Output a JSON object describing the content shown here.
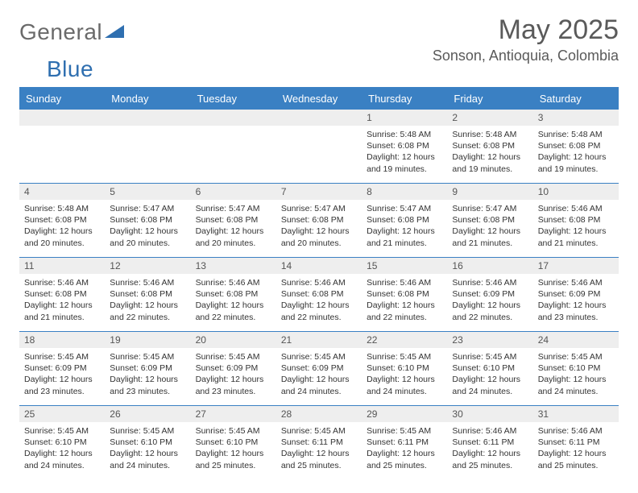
{
  "brand": {
    "part1": "General",
    "part2": "Blue"
  },
  "header": {
    "month": "May 2025",
    "location": "Sonson, Antioquia, Colombia"
  },
  "colors": {
    "accent": "#3a80c3",
    "row_band": "#eeeeee",
    "text": "#333333",
    "muted": "#5a5a5a",
    "bg": "#ffffff"
  },
  "weekdays": [
    "Sunday",
    "Monday",
    "Tuesday",
    "Wednesday",
    "Thursday",
    "Friday",
    "Saturday"
  ],
  "weeks": [
    [
      {
        "n": "",
        "sr": "",
        "ss": "",
        "dl": ""
      },
      {
        "n": "",
        "sr": "",
        "ss": "",
        "dl": ""
      },
      {
        "n": "",
        "sr": "",
        "ss": "",
        "dl": ""
      },
      {
        "n": "",
        "sr": "",
        "ss": "",
        "dl": ""
      },
      {
        "n": "1",
        "sr": "Sunrise: 5:48 AM",
        "ss": "Sunset: 6:08 PM",
        "dl": "Daylight: 12 hours and 19 minutes."
      },
      {
        "n": "2",
        "sr": "Sunrise: 5:48 AM",
        "ss": "Sunset: 6:08 PM",
        "dl": "Daylight: 12 hours and 19 minutes."
      },
      {
        "n": "3",
        "sr": "Sunrise: 5:48 AM",
        "ss": "Sunset: 6:08 PM",
        "dl": "Daylight: 12 hours and 19 minutes."
      }
    ],
    [
      {
        "n": "4",
        "sr": "Sunrise: 5:48 AM",
        "ss": "Sunset: 6:08 PM",
        "dl": "Daylight: 12 hours and 20 minutes."
      },
      {
        "n": "5",
        "sr": "Sunrise: 5:47 AM",
        "ss": "Sunset: 6:08 PM",
        "dl": "Daylight: 12 hours and 20 minutes."
      },
      {
        "n": "6",
        "sr": "Sunrise: 5:47 AM",
        "ss": "Sunset: 6:08 PM",
        "dl": "Daylight: 12 hours and 20 minutes."
      },
      {
        "n": "7",
        "sr": "Sunrise: 5:47 AM",
        "ss": "Sunset: 6:08 PM",
        "dl": "Daylight: 12 hours and 20 minutes."
      },
      {
        "n": "8",
        "sr": "Sunrise: 5:47 AM",
        "ss": "Sunset: 6:08 PM",
        "dl": "Daylight: 12 hours and 21 minutes."
      },
      {
        "n": "9",
        "sr": "Sunrise: 5:47 AM",
        "ss": "Sunset: 6:08 PM",
        "dl": "Daylight: 12 hours and 21 minutes."
      },
      {
        "n": "10",
        "sr": "Sunrise: 5:46 AM",
        "ss": "Sunset: 6:08 PM",
        "dl": "Daylight: 12 hours and 21 minutes."
      }
    ],
    [
      {
        "n": "11",
        "sr": "Sunrise: 5:46 AM",
        "ss": "Sunset: 6:08 PM",
        "dl": "Daylight: 12 hours and 21 minutes."
      },
      {
        "n": "12",
        "sr": "Sunrise: 5:46 AM",
        "ss": "Sunset: 6:08 PM",
        "dl": "Daylight: 12 hours and 22 minutes."
      },
      {
        "n": "13",
        "sr": "Sunrise: 5:46 AM",
        "ss": "Sunset: 6:08 PM",
        "dl": "Daylight: 12 hours and 22 minutes."
      },
      {
        "n": "14",
        "sr": "Sunrise: 5:46 AM",
        "ss": "Sunset: 6:08 PM",
        "dl": "Daylight: 12 hours and 22 minutes."
      },
      {
        "n": "15",
        "sr": "Sunrise: 5:46 AM",
        "ss": "Sunset: 6:08 PM",
        "dl": "Daylight: 12 hours and 22 minutes."
      },
      {
        "n": "16",
        "sr": "Sunrise: 5:46 AM",
        "ss": "Sunset: 6:09 PM",
        "dl": "Daylight: 12 hours and 22 minutes."
      },
      {
        "n": "17",
        "sr": "Sunrise: 5:46 AM",
        "ss": "Sunset: 6:09 PM",
        "dl": "Daylight: 12 hours and 23 minutes."
      }
    ],
    [
      {
        "n": "18",
        "sr": "Sunrise: 5:45 AM",
        "ss": "Sunset: 6:09 PM",
        "dl": "Daylight: 12 hours and 23 minutes."
      },
      {
        "n": "19",
        "sr": "Sunrise: 5:45 AM",
        "ss": "Sunset: 6:09 PM",
        "dl": "Daylight: 12 hours and 23 minutes."
      },
      {
        "n": "20",
        "sr": "Sunrise: 5:45 AM",
        "ss": "Sunset: 6:09 PM",
        "dl": "Daylight: 12 hours and 23 minutes."
      },
      {
        "n": "21",
        "sr": "Sunrise: 5:45 AM",
        "ss": "Sunset: 6:09 PM",
        "dl": "Daylight: 12 hours and 24 minutes."
      },
      {
        "n": "22",
        "sr": "Sunrise: 5:45 AM",
        "ss": "Sunset: 6:10 PM",
        "dl": "Daylight: 12 hours and 24 minutes."
      },
      {
        "n": "23",
        "sr": "Sunrise: 5:45 AM",
        "ss": "Sunset: 6:10 PM",
        "dl": "Daylight: 12 hours and 24 minutes."
      },
      {
        "n": "24",
        "sr": "Sunrise: 5:45 AM",
        "ss": "Sunset: 6:10 PM",
        "dl": "Daylight: 12 hours and 24 minutes."
      }
    ],
    [
      {
        "n": "25",
        "sr": "Sunrise: 5:45 AM",
        "ss": "Sunset: 6:10 PM",
        "dl": "Daylight: 12 hours and 24 minutes."
      },
      {
        "n": "26",
        "sr": "Sunrise: 5:45 AM",
        "ss": "Sunset: 6:10 PM",
        "dl": "Daylight: 12 hours and 24 minutes."
      },
      {
        "n": "27",
        "sr": "Sunrise: 5:45 AM",
        "ss": "Sunset: 6:10 PM",
        "dl": "Daylight: 12 hours and 25 minutes."
      },
      {
        "n": "28",
        "sr": "Sunrise: 5:45 AM",
        "ss": "Sunset: 6:11 PM",
        "dl": "Daylight: 12 hours and 25 minutes."
      },
      {
        "n": "29",
        "sr": "Sunrise: 5:45 AM",
        "ss": "Sunset: 6:11 PM",
        "dl": "Daylight: 12 hours and 25 minutes."
      },
      {
        "n": "30",
        "sr": "Sunrise: 5:46 AM",
        "ss": "Sunset: 6:11 PM",
        "dl": "Daylight: 12 hours and 25 minutes."
      },
      {
        "n": "31",
        "sr": "Sunrise: 5:46 AM",
        "ss": "Sunset: 6:11 PM",
        "dl": "Daylight: 12 hours and 25 minutes."
      }
    ]
  ]
}
